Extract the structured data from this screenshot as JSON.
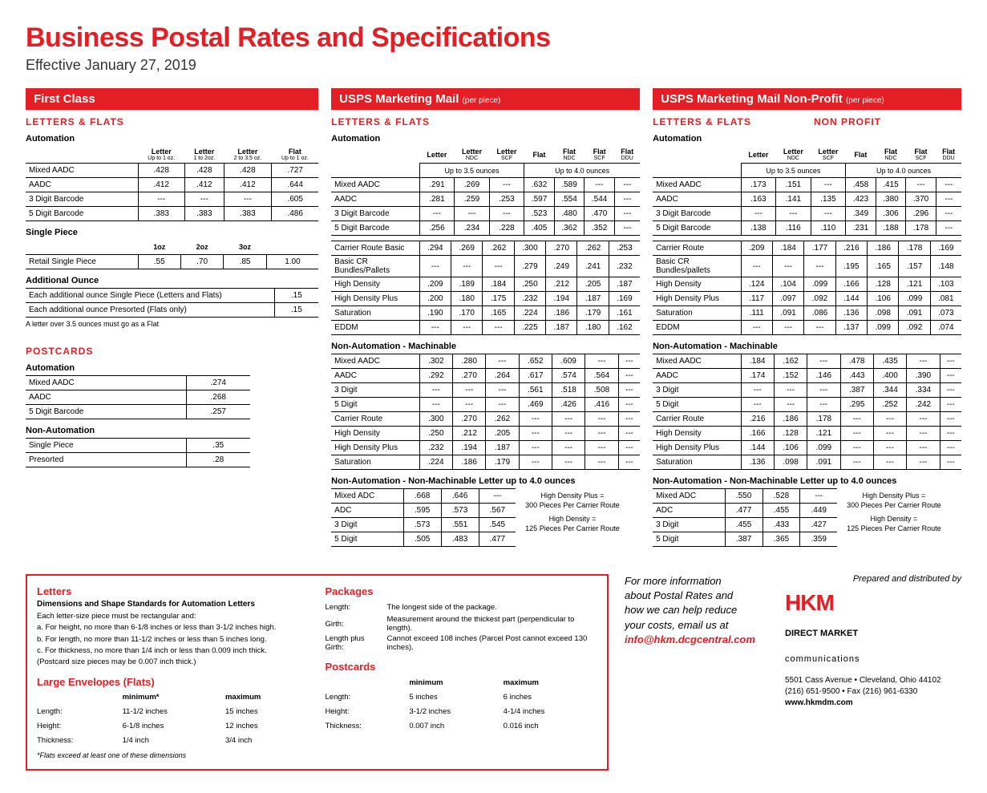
{
  "title": "Business Postal Rates and Specifications",
  "subtitle": "Effective January 27, 2019",
  "fc": {
    "bar": "First Class",
    "sec": "LETTERS & FLATS",
    "auto": {
      "lbl": "Automation",
      "hdr": [
        "Letter",
        "Letter",
        "Letter",
        "Flat"
      ],
      "sub": [
        "Up to 1 oz.",
        "1 to 2oz.",
        "2 to 3.5 oz.",
        "Up to 1 oz."
      ],
      "rows": [
        [
          "Mixed AADC",
          ".428",
          ".428",
          ".428",
          ".727"
        ],
        [
          "AADC",
          ".412",
          ".412",
          ".412",
          ".644"
        ],
        [
          "3 Digit Barcode",
          "---",
          "---",
          "---",
          ".605"
        ],
        [
          "5 Digit Barcode",
          ".383",
          ".383",
          ".383",
          ".486"
        ]
      ]
    },
    "sp": {
      "lbl": "Single Piece",
      "hdr": [
        "1oz",
        "2oz",
        "3oz",
        ""
      ],
      "rows": [
        [
          "Retail Single Piece",
          ".55",
          ".70",
          ".85",
          "1.00"
        ]
      ]
    },
    "ao": {
      "lbl": "Additional Ounce",
      "rows": [
        [
          "Each additional ounce Single Piece   (Letters and Flats)",
          ".15"
        ],
        [
          "Each additional ounce Presorted        (Flats only)",
          ".15"
        ]
      ],
      "note": "A letter over 3.5 ounces must go as a Flat"
    },
    "pc": {
      "sec": "POSTCARDS",
      "auto": {
        "lbl": "Automation",
        "rows": [
          [
            "Mixed AADC",
            ".274"
          ],
          [
            "AADC",
            ".268"
          ],
          [
            "5 Digit Barcode",
            ".257"
          ]
        ]
      },
      "na": {
        "lbl": "Non-Automation",
        "rows": [
          [
            "Single Piece",
            ".35"
          ],
          [
            "Presorted",
            ".28"
          ]
        ]
      }
    }
  },
  "mm": {
    "bar": "USPS Marketing Mail",
    "barSm": "(per piece)",
    "sec": "LETTERS & FLATS",
    "hdr": [
      "Letter",
      "Letter NDC",
      "Letter SCF",
      "Flat",
      "Flat NDC",
      "Flat SCF",
      "Flat DDU"
    ],
    "span": [
      "Up to 3.5 ounces",
      "Up to 4.0 ounces"
    ],
    "auto": {
      "lbl": "Automation",
      "rows": [
        [
          "Mixed AADC",
          ".291",
          ".269",
          "---",
          ".632",
          ".589",
          "---",
          "---"
        ],
        [
          "AADC",
          ".281",
          ".259",
          ".253",
          ".597",
          ".554",
          ".544",
          "---"
        ],
        [
          "3 Digit Barcode",
          "---",
          "---",
          "---",
          ".523",
          ".480",
          ".470",
          "---"
        ],
        [
          "5 Digit Barcode",
          ".256",
          ".234",
          ".228",
          ".405",
          ".362",
          ".352",
          "---"
        ]
      ]
    },
    "cr": {
      "rows": [
        [
          "Carrier Route Basic",
          ".294",
          ".269",
          ".262",
          ".300",
          ".270",
          ".262",
          ".253"
        ],
        [
          "Basic CR Bundles/Pallets",
          "---",
          "---",
          "---",
          ".279",
          ".249",
          ".241",
          ".232"
        ],
        [
          "High Density",
          ".209",
          ".189",
          ".184",
          ".250",
          ".212",
          ".205",
          ".187"
        ],
        [
          "High Density Plus",
          ".200",
          ".180",
          ".175",
          ".232",
          ".194",
          ".187",
          ".169"
        ],
        [
          "Saturation",
          ".190",
          ".170",
          ".165",
          ".224",
          ".186",
          ".179",
          ".161"
        ],
        [
          "EDDM",
          "---",
          "---",
          "---",
          ".225",
          ".187",
          ".180",
          ".162"
        ]
      ]
    },
    "nam": {
      "lbl": "Non-Automation - Machinable",
      "rows": [
        [
          "Mixed AADC",
          ".302",
          ".280",
          "---",
          ".652",
          ".609",
          "---",
          "---"
        ],
        [
          "AADC",
          ".292",
          ".270",
          ".264",
          ".617",
          ".574",
          ".564",
          "---"
        ],
        [
          "3 Digit",
          "---",
          "---",
          "---",
          ".561",
          ".518",
          ".508",
          "---"
        ],
        [
          "5 Digit",
          "---",
          "---",
          "---",
          ".469",
          ".426",
          ".416",
          "---"
        ],
        [
          "Carrier Route",
          ".300",
          ".270",
          ".262",
          "---",
          "---",
          "---",
          "---"
        ],
        [
          "High Density",
          ".250",
          ".212",
          ".205",
          "---",
          "---",
          "---",
          "---"
        ],
        [
          "High Density Plus",
          ".232",
          ".194",
          ".187",
          "---",
          "---",
          "---",
          "---"
        ],
        [
          "Saturation",
          ".224",
          ".186",
          ".179",
          "---",
          "---",
          "---",
          "---"
        ]
      ]
    },
    "nanm": {
      "lbl": "Non-Automation - Non-Machinable Letter up to 4.0 ounces",
      "rows": [
        [
          "Mixed ADC",
          ".668",
          ".646",
          "---"
        ],
        [
          "ADC",
          ".595",
          ".573",
          ".567"
        ],
        [
          "3 Digit",
          ".573",
          ".551",
          ".545"
        ],
        [
          "5 Digit",
          ".505",
          ".483",
          ".477"
        ]
      ],
      "note1": "High Density Plus =",
      "note2": "300 Pieces Per Carrier Route",
      "note3": "High Density =",
      "note4": "125 Pieces Per Carrier Route"
    }
  },
  "np": {
    "bar": "USPS Marketing Mail Non-Profit",
    "barSm": "(per piece)",
    "sec": "LETTERS & FLATS",
    "sec2": "NON PROFIT",
    "auto": {
      "lbl": "Automation",
      "rows": [
        [
          "Mixed AADC",
          ".173",
          ".151",
          "---",
          ".458",
          ".415",
          "---",
          "---"
        ],
        [
          "AADC",
          ".163",
          ".141",
          ".135",
          ".423",
          ".380",
          ".370",
          "---"
        ],
        [
          "3 Digit Barcode",
          "---",
          "---",
          "---",
          ".349",
          ".306",
          ".296",
          "---"
        ],
        [
          "5 Digit Barcode",
          ".138",
          ".116",
          ".110",
          ".231",
          ".188",
          ".178",
          "---"
        ]
      ]
    },
    "cr": {
      "rows": [
        [
          "Carrier Route",
          ".209",
          ".184",
          ".177",
          ".216",
          ".186",
          ".178",
          ".169"
        ],
        [
          "Basic CR Bundles/pallets",
          "---",
          "---",
          "---",
          ".195",
          ".165",
          ".157",
          ".148"
        ],
        [
          "High Density",
          ".124",
          ".104",
          ".099",
          ".166",
          ".128",
          ".121",
          ".103"
        ],
        [
          "High Density Plus",
          ".117",
          ".097",
          ".092",
          ".144",
          ".106",
          ".099",
          ".081"
        ],
        [
          "Saturation",
          ".111",
          ".091",
          ".086",
          ".136",
          ".098",
          ".091",
          ".073"
        ],
        [
          "EDDM",
          "---",
          "---",
          "---",
          ".137",
          ".099",
          ".092",
          ".074"
        ]
      ]
    },
    "nam": {
      "lbl": "Non-Automation - Machinable",
      "rows": [
        [
          "Mixed AADC",
          ".184",
          ".162",
          "---",
          ".478",
          ".435",
          "---",
          "---"
        ],
        [
          "AADC",
          ".174",
          ".152",
          ".146",
          ".443",
          ".400",
          ".390",
          "---"
        ],
        [
          "3 Digit",
          "---",
          "---",
          "---",
          ".387",
          ".344",
          ".334",
          "---"
        ],
        [
          "5 Digit",
          "---",
          "---",
          "---",
          ".295",
          ".252",
          ".242",
          "---"
        ],
        [
          "Carrier Route",
          ".216",
          ".186",
          ".178",
          "---",
          "---",
          "---",
          "---"
        ],
        [
          "High Density",
          ".166",
          ".128",
          ".121",
          "---",
          "---",
          "---",
          "---"
        ],
        [
          "High Density Plus",
          ".144",
          ".106",
          ".099",
          "---",
          "---",
          "---",
          "---"
        ],
        [
          "Saturation",
          ".136",
          ".098",
          ".091",
          "---",
          "---",
          "---",
          "---"
        ]
      ]
    },
    "nanm": {
      "lbl": "Non-Automation - Non-Machinable Letter up to 4.0 ounces",
      "rows": [
        [
          "Mixed ADC",
          ".550",
          ".528",
          "---"
        ],
        [
          "ADC",
          ".477",
          ".455",
          ".449"
        ],
        [
          "3 Digit",
          ".455",
          ".433",
          ".427"
        ],
        [
          "5 Digit",
          ".387",
          ".365",
          ".359"
        ]
      ]
    }
  },
  "specs": {
    "letters": {
      "h": "Letters",
      "sh": "Dimensions and Shape Standards for Automation Letters",
      "intro": "Each letter-size piece must be rectangular and:",
      "a": "a.  For height, no more than 6-1/8 inches or less than 3-1/2 inches high.",
      "b": "b.  For length, no more than 11-1/2 inches or less than 5 inches long.",
      "c": "c.  For thickness, no more than 1/4 inch or less than 0.009 inch thick.",
      "c2": "     (Postcard size pieces may be 0.007 inch thick.)"
    },
    "flats": {
      "h": "Large Envelopes (Flats)",
      "cols": [
        "",
        "minimum*",
        "maximum"
      ],
      "rows": [
        [
          "Length:",
          "11-1/2 inches",
          "15 inches"
        ],
        [
          "Height:",
          "6-1/8 inches",
          "12 inches"
        ],
        [
          "Thickness:",
          "1/4 inch",
          "3/4 inch"
        ]
      ],
      "note": "*Flats exceed at least one of these dimensions"
    },
    "pkg": {
      "h": "Packages",
      "rows": [
        [
          "Length:",
          "The longest side of the package."
        ],
        [
          "Girth:",
          "Measurement around the thickest part (perpendicular to length)."
        ],
        [
          "Length plus Girth:",
          "Cannot exceed 108 inches (Parcel Post cannot exceed 130 inches)."
        ]
      ]
    },
    "pc": {
      "h": "Postcards",
      "cols": [
        "",
        "minimum",
        "maximum"
      ],
      "rows": [
        [
          "Length:",
          "5 inches",
          "6 inches"
        ],
        [
          "Height:",
          "3-1/2 inches",
          "4-1/4 inches"
        ],
        [
          "Thickness:",
          "0.007 inch",
          "0.016 inch"
        ]
      ]
    }
  },
  "info": {
    "l1": "For more information",
    "l2": "about Postal Rates and",
    "l3": "how we can help reduce",
    "l4": "your costs, email us at",
    "em": "info@hkm.dcgcentral.com"
  },
  "prep": "Prepared and distributed by",
  "logo": "HKM",
  "logo2": "DIRECT MARKET",
  "logo3": "communications",
  "addr": {
    "l1": "5501 Cass Avenue • Cleveland, Ohio 44102",
    "l2": "(216) 651-9500 • Fax (216) 961-6330",
    "l3": "www.hkmdm.com"
  }
}
